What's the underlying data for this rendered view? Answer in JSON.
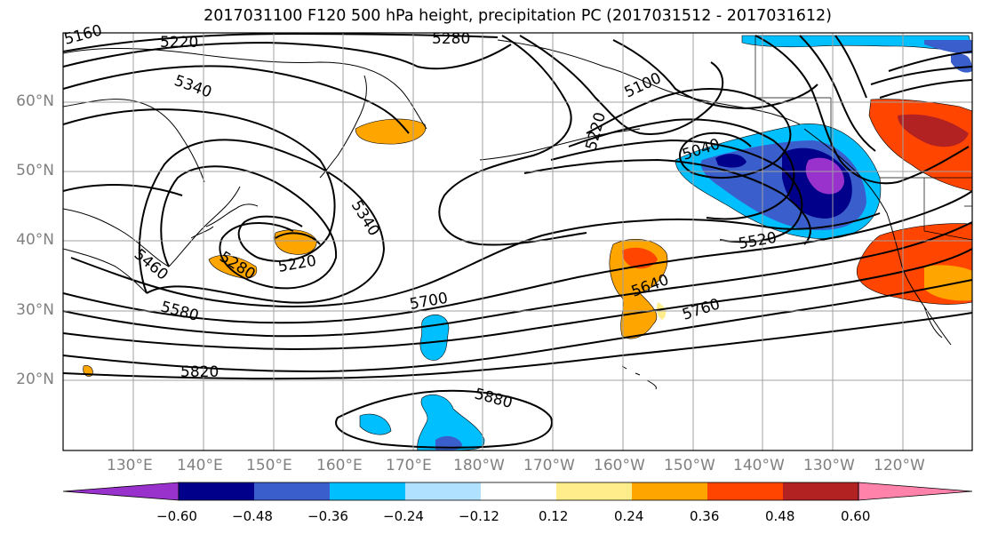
{
  "title": "2017031100 F120 500 hPa height, precipitation PC (2017031512 - 2017031612)",
  "lat_labels": [
    "60°N",
    "50°N",
    "40°N",
    "30°N",
    "20°N"
  ],
  "lon_labels": [
    "130°E",
    "140°E",
    "150°E",
    "160°E",
    "170°E",
    "180°W",
    "170°W",
    "160°W",
    "150°W",
    "140°W",
    "130°W",
    "120°W"
  ],
  "contour_labels": [
    "5160",
    "5220",
    "5280",
    "5340",
    "5100",
    "5220",
    "5040",
    "5340",
    "5280",
    "5220",
    "5460",
    "5520",
    "5580",
    "5640",
    "5700",
    "5760",
    "5820",
    "5880"
  ],
  "colorbar": {
    "colors": [
      "#9932cc",
      "#00008b",
      "#3a5fcd",
      "#00bfff",
      "#b0e2ff",
      "#ffffff",
      "#ffec8b",
      "#ffa500",
      "#ff4500",
      "#b22222",
      "#ff82ab"
    ],
    "ticks": [
      "−0.60",
      "−0.48",
      "−0.36",
      "−0.24",
      "−0.12",
      "0.12",
      "0.24",
      "0.36",
      "0.48",
      "0.60"
    ]
  },
  "colors": {
    "grid": "#a0a0a0",
    "contour": "#000000",
    "tick_label": "#808080"
  }
}
